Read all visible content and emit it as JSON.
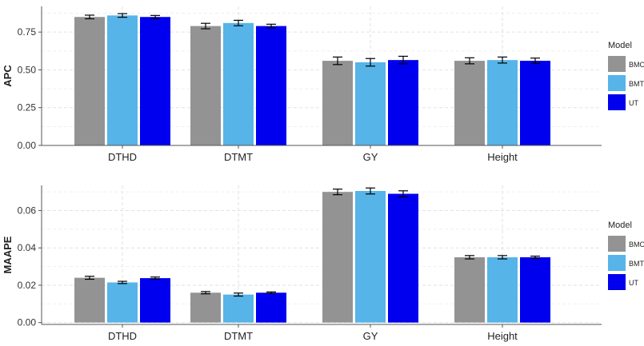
{
  "legend": {
    "title": "Model",
    "entries": [
      {
        "label": "BMORS",
        "color": "#939393"
      },
      {
        "label": "BMTME",
        "color": "#56b4e9"
      },
      {
        "label": "UT",
        "color": "#0000ee"
      }
    ]
  },
  "chart_data": [
    {
      "type": "bar",
      "title": "",
      "xlabel": "",
      "ylabel": "APC",
      "categories": [
        "DTHD",
        "DTMT",
        "GY",
        "Height"
      ],
      "ylim": [
        0,
        0.92
      ],
      "yticks": [
        0.0,
        0.25,
        0.5,
        0.75
      ],
      "ytick_labels": [
        "0.00",
        "0.25",
        "0.50",
        "0.75"
      ],
      "grid": true,
      "legend_position": "right",
      "series": [
        {
          "name": "BMORS",
          "values": [
            0.85,
            0.79,
            0.56,
            0.56
          ],
          "errors": [
            0.012,
            0.018,
            0.025,
            0.02
          ]
        },
        {
          "name": "BMTME",
          "values": [
            0.86,
            0.81,
            0.55,
            0.565
          ],
          "errors": [
            0.012,
            0.018,
            0.025,
            0.02
          ]
        },
        {
          "name": "UT",
          "values": [
            0.85,
            0.79,
            0.565,
            0.56
          ],
          "errors": [
            0.01,
            0.012,
            0.025,
            0.018
          ]
        }
      ]
    },
    {
      "type": "bar",
      "title": "",
      "xlabel": "",
      "ylabel": "MAAPE",
      "categories": [
        "DTHD",
        "DTMT",
        "GY",
        "Height"
      ],
      "ylim": [
        -0.001,
        0.0735
      ],
      "yticks": [
        0.0,
        0.02,
        0.04,
        0.06
      ],
      "ytick_labels": [
        "0.00",
        "0.02",
        "0.04",
        "0.06"
      ],
      "grid": true,
      "legend_position": "right",
      "series": [
        {
          "name": "BMORS",
          "values": [
            0.024,
            0.016,
            0.07,
            0.035
          ],
          "errors": [
            0.0008,
            0.0006,
            0.0015,
            0.0009
          ]
        },
        {
          "name": "BMTME",
          "values": [
            0.0215,
            0.015,
            0.0705,
            0.035
          ],
          "errors": [
            0.0006,
            0.0008,
            0.0016,
            0.0009
          ]
        },
        {
          "name": "UT",
          "values": [
            0.0238,
            0.016,
            0.069,
            0.035
          ],
          "errors": [
            0.0006,
            0.0004,
            0.0016,
            0.0006
          ]
        }
      ]
    }
  ]
}
